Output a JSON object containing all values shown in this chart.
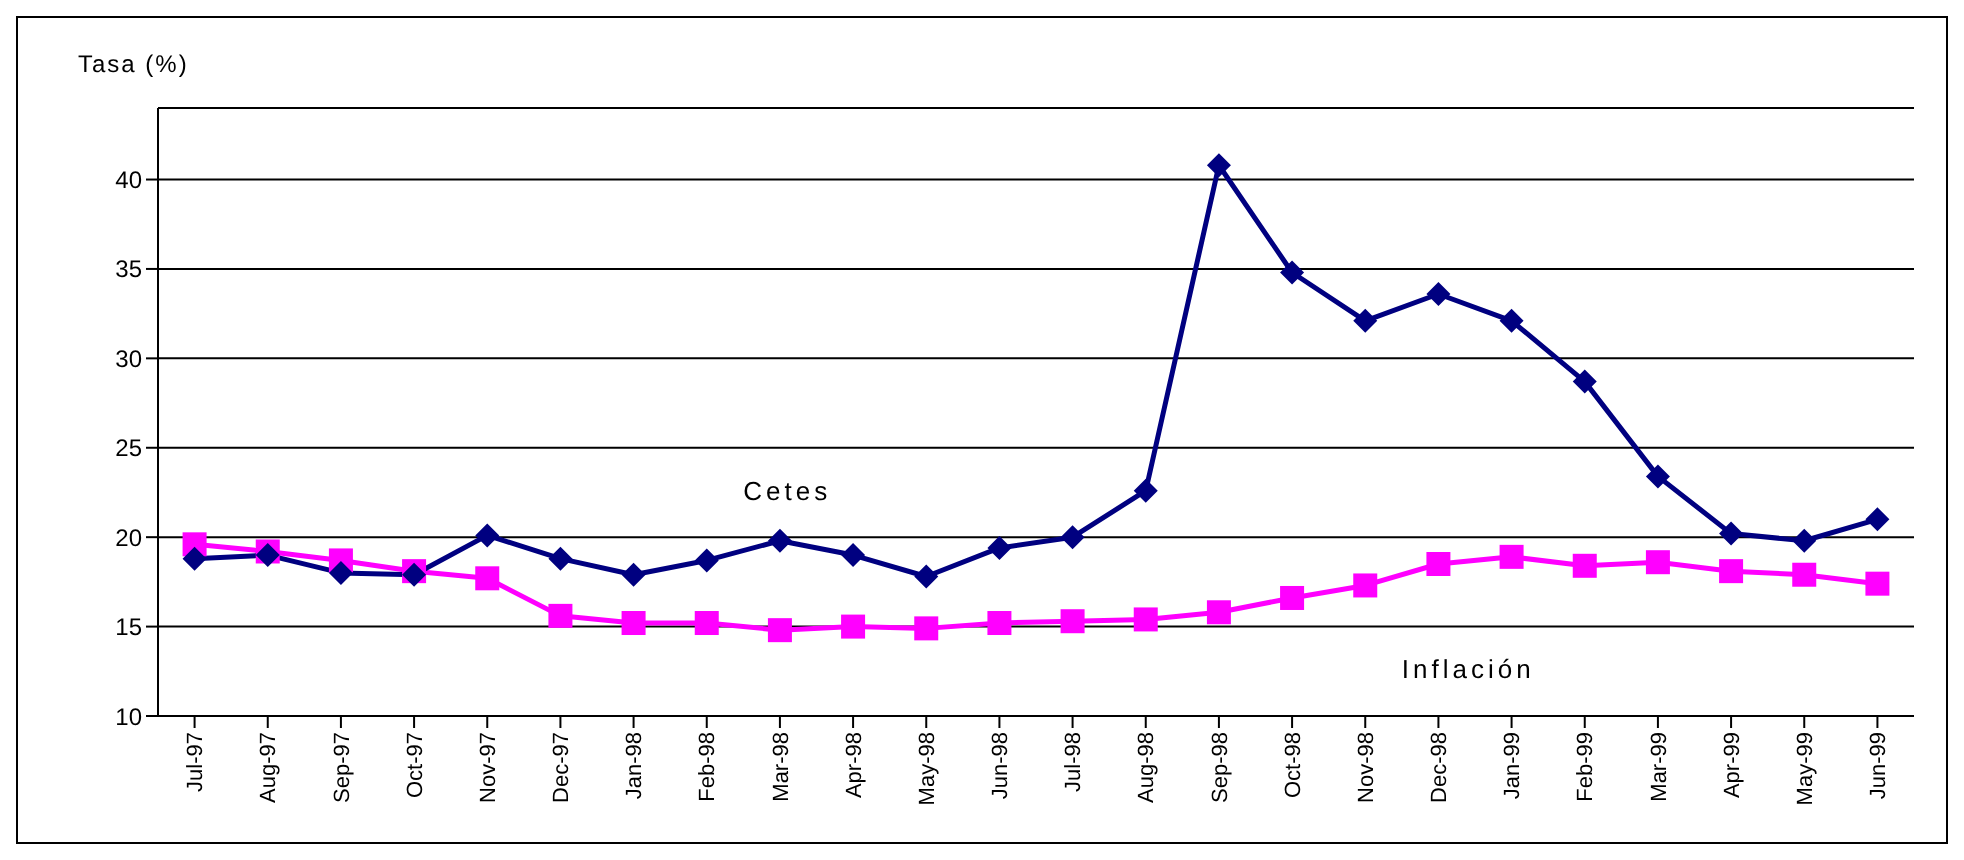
{
  "chart_data": {
    "type": "line",
    "ylabel": "Tasa (%)",
    "categories": [
      "Jul-97",
      "Aug-97",
      "Sep-97",
      "Oct-97",
      "Nov-97",
      "Dec-97",
      "Jan-98",
      "Feb-98",
      "Mar-98",
      "Apr-98",
      "May-98",
      "Jun-98",
      "Jul-98",
      "Aug-98",
      "Sep-98",
      "Oct-98",
      "Nov-98",
      "Dec-98",
      "Jan-99",
      "Feb-99",
      "Mar-99",
      "Apr-99",
      "May-99",
      "Jun-99"
    ],
    "series": [
      {
        "name": "Cetes",
        "color": "#000080",
        "marker": "diamond",
        "values": [
          18.8,
          19.0,
          18.0,
          17.9,
          20.1,
          18.8,
          17.9,
          18.7,
          19.8,
          19.0,
          17.8,
          19.4,
          20.0,
          22.6,
          40.8,
          34.8,
          32.1,
          33.6,
          32.1,
          28.7,
          23.4,
          20.2,
          19.8,
          21.0
        ]
      },
      {
        "name": "Inflación",
        "color": "#ff00ff",
        "marker": "square",
        "values": [
          19.6,
          19.2,
          18.7,
          18.1,
          17.7,
          15.6,
          15.2,
          15.2,
          14.8,
          15.0,
          14.9,
          15.2,
          15.3,
          15.4,
          15.8,
          16.6,
          17.3,
          18.5,
          18.9,
          18.4,
          18.6,
          18.1,
          17.9,
          17.4
        ]
      }
    ],
    "ylim": [
      10,
      44
    ],
    "yticks": [
      10,
      15,
      20,
      25,
      30,
      35,
      40
    ],
    "grid": "y",
    "legend": false,
    "line_style": "solid"
  }
}
